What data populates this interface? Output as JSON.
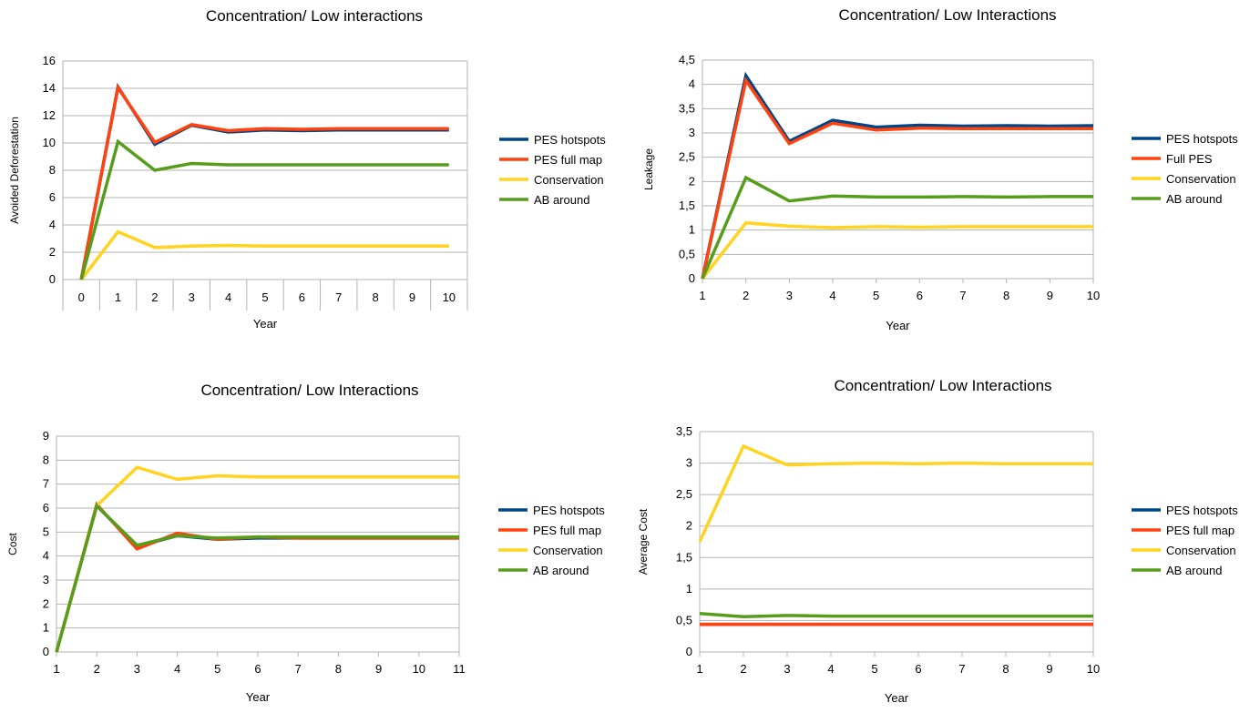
{
  "colors": {
    "pes_hotspots": "#004586",
    "pes_full": "#ff420e",
    "conservation": "#ffd320",
    "ab_around": "#579d1c",
    "grid": "#b3b3b3"
  },
  "chart_data": [
    {
      "type": "line",
      "title": "Concentration/ Low interactions",
      "xlabel": "Year",
      "ylabel": "Avoided Deforestation",
      "categories": [
        "0",
        "1",
        "2",
        "3",
        "4",
        "5",
        "6",
        "7",
        "8",
        "9",
        "10"
      ],
      "x_axis_style": "category",
      "ylim": [
        0,
        16
      ],
      "yticks": [
        "0",
        "2",
        "4",
        "6",
        "8",
        "10",
        "12",
        "14",
        "16"
      ],
      "grid": "horizontal",
      "legend": "right",
      "series": [
        {
          "name": "PES hotspots",
          "color": "#004586",
          "values": [
            0,
            14.1,
            9.9,
            11.3,
            10.8,
            10.95,
            10.9,
            10.95,
            10.95,
            10.95,
            10.95
          ]
        },
        {
          "name": "PES full map",
          "color": "#ff420e",
          "values": [
            0,
            14.05,
            10.05,
            11.35,
            10.9,
            11.05,
            11.0,
            11.05,
            11.05,
            11.05,
            11.05
          ]
        },
        {
          "name": "Conservation",
          "color": "#ffd320",
          "values": [
            0,
            3.5,
            2.35,
            2.45,
            2.5,
            2.45,
            2.45,
            2.45,
            2.45,
            2.45,
            2.45
          ]
        },
        {
          "name": "AB around",
          "color": "#579d1c",
          "values": [
            0,
            10.1,
            8.0,
            8.5,
            8.4,
            8.4,
            8.4,
            8.4,
            8.4,
            8.4,
            8.4
          ]
        }
      ]
    },
    {
      "type": "line",
      "title": "Concentration/ Low Interactions",
      "xlabel": "Year",
      "ylabel": "Leakage",
      "categories": [
        "1",
        "2",
        "3",
        "4",
        "5",
        "6",
        "7",
        "8",
        "9",
        "10"
      ],
      "x_axis_style": "value",
      "ylim": [
        0,
        4.5
      ],
      "yticks": [
        "0",
        "0,5",
        "1",
        "1,5",
        "2",
        "2,5",
        "3",
        "3,5",
        "4",
        "4,5"
      ],
      "grid": "horizontal",
      "legend": "right",
      "series": [
        {
          "name": "PES hotspots",
          "color": "#004586",
          "values": [
            0,
            4.18,
            2.83,
            3.26,
            3.12,
            3.16,
            3.14,
            3.15,
            3.14,
            3.15
          ]
        },
        {
          "name": "Full PES",
          "color": "#ff420e",
          "values": [
            0,
            4.08,
            2.78,
            3.2,
            3.06,
            3.1,
            3.09,
            3.09,
            3.09,
            3.09
          ]
        },
        {
          "name": "Conservation",
          "color": "#ffd320",
          "values": [
            0,
            1.15,
            1.08,
            1.05,
            1.07,
            1.06,
            1.07,
            1.07,
            1.07,
            1.07
          ]
        },
        {
          "name": "AB around",
          "color": "#579d1c",
          "values": [
            0,
            2.08,
            1.6,
            1.7,
            1.68,
            1.68,
            1.69,
            1.68,
            1.69,
            1.69
          ]
        }
      ]
    },
    {
      "type": "line",
      "title": "Concentration/ Low Interactions",
      "xlabel": "Year",
      "ylabel": "Cost",
      "categories": [
        "1",
        "2",
        "3",
        "4",
        "5",
        "6",
        "7",
        "8",
        "9",
        "10",
        "11"
      ],
      "x_axis_style": "value",
      "ylim": [
        0,
        9
      ],
      "yticks": [
        "0",
        "1",
        "2",
        "3",
        "4",
        "5",
        "6",
        "7",
        "8",
        "9"
      ],
      "grid": "horizontal",
      "legend": "right",
      "series": [
        {
          "name": "PES hotspots",
          "color": "#004586",
          "values": [
            0,
            6.1,
            4.4,
            4.85,
            4.7,
            4.75,
            4.75,
            4.75,
            4.75,
            4.75,
            4.75
          ]
        },
        {
          "name": "PES full map",
          "color": "#ff420e",
          "values": [
            0,
            6.15,
            4.3,
            4.95,
            4.7,
            4.8,
            4.75,
            4.75,
            4.75,
            4.75,
            4.75
          ]
        },
        {
          "name": "Conservation",
          "color": "#ffd320",
          "values": [
            0,
            6.1,
            7.7,
            7.2,
            7.35,
            7.3,
            7.3,
            7.3,
            7.3,
            7.3,
            7.3
          ]
        },
        {
          "name": "AB around",
          "color": "#579d1c",
          "values": [
            0,
            6.1,
            4.45,
            4.85,
            4.75,
            4.8,
            4.8,
            4.8,
            4.8,
            4.8,
            4.8
          ]
        }
      ]
    },
    {
      "type": "line",
      "title": "Concentration/ Low Interactions",
      "xlabel": "Year",
      "ylabel": "Average Cost",
      "categories": [
        "1",
        "2",
        "3",
        "4",
        "5",
        "6",
        "7",
        "8",
        "9",
        "10"
      ],
      "x_axis_style": "value",
      "ylim": [
        0,
        3.5
      ],
      "yticks": [
        "0",
        "0,5",
        "1",
        "1,5",
        "2",
        "2,5",
        "3",
        "3,5"
      ],
      "grid": "horizontal",
      "legend": "right",
      "series": [
        {
          "name": "PES hotspots",
          "color": "#004586",
          "values": [
            0.44,
            0.44,
            0.44,
            0.44,
            0.44,
            0.44,
            0.44,
            0.44,
            0.44,
            0.44
          ]
        },
        {
          "name": "PES full map",
          "color": "#ff420e",
          "values": [
            0.44,
            0.44,
            0.44,
            0.44,
            0.44,
            0.44,
            0.44,
            0.44,
            0.44,
            0.44
          ]
        },
        {
          "name": "Conservation",
          "color": "#ffd320",
          "values": [
            1.75,
            3.27,
            2.97,
            2.99,
            3.0,
            2.99,
            3.0,
            2.99,
            2.99,
            2.99
          ]
        },
        {
          "name": "AB around",
          "color": "#579d1c",
          "values": [
            0.61,
            0.56,
            0.58,
            0.57,
            0.57,
            0.57,
            0.57,
            0.57,
            0.57,
            0.57
          ]
        }
      ]
    }
  ]
}
